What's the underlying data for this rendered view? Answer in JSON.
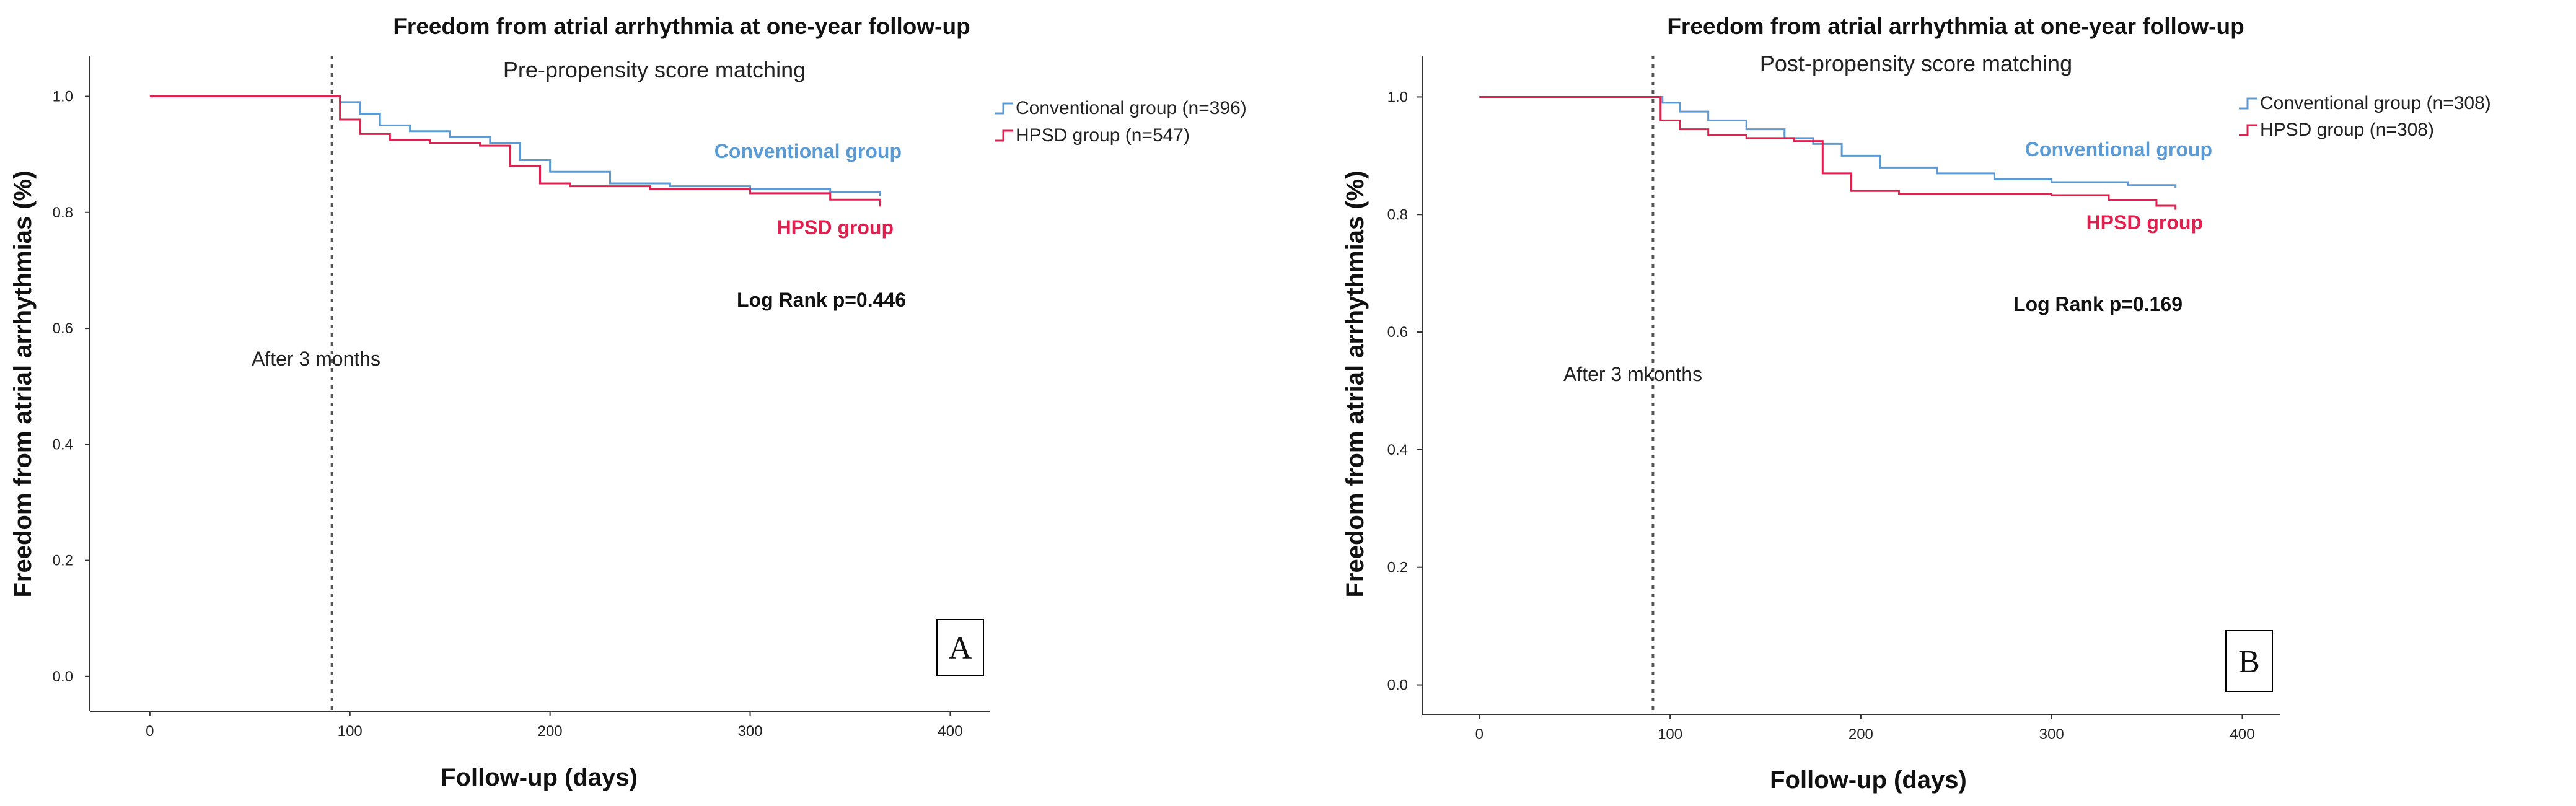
{
  "colors": {
    "conventional": "#5b9bd5",
    "hpsd": "#e0204e"
  },
  "chart_data": [
    {
      "type": "line",
      "panel_letter": "A",
      "title": "Freedom from atrial arrhythmia at one-year follow-up",
      "subtitle": "Pre-propensity score matching",
      "xlabel": "Follow-up (days)",
      "ylabel": "Freedom from atrial arrhythmias (%)",
      "xlim": [
        -30,
        420
      ],
      "ylim": [
        -0.06,
        1.07
      ],
      "xticks": [
        0,
        100,
        200,
        300,
        400
      ],
      "yticks": [
        0.0,
        0.2,
        0.4,
        0.6,
        0.8,
        1.0
      ],
      "ytick_labels": [
        "0.0",
        "0.2",
        "0.4",
        "0.6",
        "0.8",
        "1.0"
      ],
      "vline": {
        "x": 91,
        "label": "After 3 months"
      },
      "annotation": "Log Rank p=0.446",
      "legend": {
        "position": "top-right",
        "entries": [
          "Conventional group (n=396)",
          "HPSD group (n=547)"
        ]
      },
      "series": [
        {
          "name": "Conventional group",
          "x": [
            0,
            91,
            95,
            105,
            115,
            130,
            150,
            170,
            185,
            200,
            230,
            260,
            300,
            340,
            365
          ],
          "y": [
            1.0,
            1.0,
            0.99,
            0.97,
            0.95,
            0.94,
            0.93,
            0.92,
            0.89,
            0.87,
            0.85,
            0.845,
            0.84,
            0.835,
            0.828
          ]
        },
        {
          "name": "HPSD group",
          "x": [
            0,
            91,
            95,
            105,
            120,
            140,
            165,
            180,
            195,
            210,
            250,
            300,
            340,
            365
          ],
          "y": [
            1.0,
            1.0,
            0.96,
            0.935,
            0.925,
            0.92,
            0.915,
            0.88,
            0.85,
            0.845,
            0.84,
            0.833,
            0.822,
            0.81
          ]
        }
      ],
      "series_labels": [
        "Conventional group",
        "HPSD group"
      ]
    },
    {
      "type": "line",
      "panel_letter": "B",
      "title": "Freedom from atrial arrhythmia at one-year follow-up",
      "subtitle": "Post-propensity score matching",
      "xlabel": "Follow-up (days)",
      "ylabel": "Freedom from atrial arrhythmias (%)",
      "xlim": [
        -30,
        420
      ],
      "ylim": [
        -0.05,
        1.07
      ],
      "xticks": [
        0,
        100,
        200,
        300,
        400
      ],
      "yticks": [
        0.0,
        0.2,
        0.4,
        0.6,
        0.8,
        1.0
      ],
      "ytick_labels": [
        "0.0",
        "0.2",
        "0.4",
        "0.6",
        "0.8",
        "1.0"
      ],
      "vline": {
        "x": 91,
        "label": "After 3 mkonths"
      },
      "annotation": "Log Rank p=0.169",
      "legend": {
        "position": "top-right",
        "entries": [
          "Conventional group (n=308)",
          "HPSD group (n=308)"
        ]
      },
      "series": [
        {
          "name": "Conventional group",
          "x": [
            0,
            91,
            96,
            105,
            120,
            140,
            160,
            175,
            190,
            210,
            240,
            270,
            300,
            340,
            365
          ],
          "y": [
            1.0,
            1.0,
            0.99,
            0.975,
            0.96,
            0.945,
            0.93,
            0.92,
            0.9,
            0.88,
            0.87,
            0.86,
            0.855,
            0.85,
            0.845
          ]
        },
        {
          "name": "HPSD group",
          "x": [
            0,
            91,
            95,
            105,
            120,
            140,
            165,
            180,
            195,
            220,
            250,
            300,
            330,
            355,
            365
          ],
          "y": [
            1.0,
            1.0,
            0.96,
            0.945,
            0.935,
            0.93,
            0.925,
            0.87,
            0.84,
            0.835,
            0.835,
            0.833,
            0.825,
            0.815,
            0.808
          ]
        }
      ],
      "series_labels": [
        "Conventional group",
        "HPSD group"
      ]
    }
  ]
}
